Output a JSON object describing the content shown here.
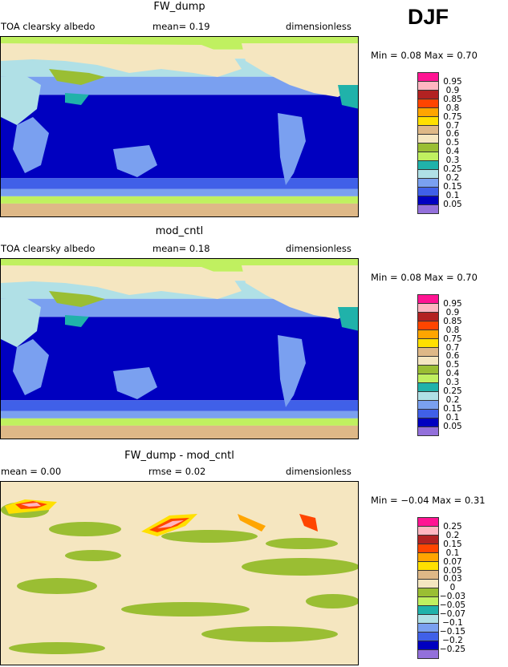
{
  "season": "DJF",
  "colors": [
    "#ff1493",
    "#ffb6c1",
    "#b22222",
    "#ff4500",
    "#ffa500",
    "#ffe000",
    "#deb887",
    "#f5e6c0",
    "#9abe33",
    "#c0f060",
    "#20b2aa",
    "#b0e0e6",
    "#7aa0f0",
    "#4060e8",
    "#0000c0",
    "#9370db"
  ],
  "panels": [
    {
      "title": "FW_dump",
      "left_label": "TOA clearsky albedo",
      "mid_label": "mean=    0.19",
      "right_label": "dimensionless",
      "minmax": "Min =    0.08  Max =    0.70",
      "levels": [
        "0.95",
        "0.9",
        "0.85",
        "0.8",
        "0.75",
        "0.7",
        "0.6",
        "0.5",
        "0.4",
        "0.3",
        "0.25",
        "0.2",
        "0.15",
        "0.1",
        "0.05"
      ]
    },
    {
      "title": "mod_cntl",
      "left_label": "TOA clearsky albedo",
      "mid_label": "mean=    0.18",
      "right_label": "dimensionless",
      "minmax": "Min =    0.08  Max =    0.70",
      "levels": [
        "0.95",
        "0.9",
        "0.85",
        "0.8",
        "0.75",
        "0.7",
        "0.6",
        "0.5",
        "0.4",
        "0.3",
        "0.25",
        "0.2",
        "0.15",
        "0.1",
        "0.05"
      ]
    },
    {
      "title": "FW_dump - mod_cntl",
      "left_label": "mean =    0.00",
      "mid_label": "rmse =    0.02",
      "right_label": "dimensionless",
      "minmax": "Min =  −0.04  Max =    0.31",
      "levels": [
        "0.25",
        "0.2",
        "0.15",
        "0.1",
        "0.07",
        "0.05",
        "0.03",
        "0",
        "−0.03",
        "−0.05",
        "−0.07",
        "−0.1",
        "−0.15",
        "−0.2",
        "−0.25"
      ]
    }
  ]
}
